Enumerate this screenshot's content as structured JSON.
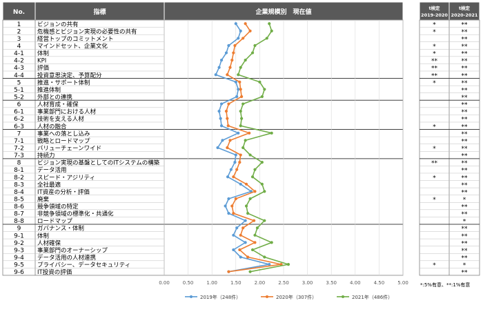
{
  "header": {
    "no": "No.",
    "indicator": "指標",
    "chart_title": "企業規模別　現在値",
    "ttest1": [
      "t検定",
      "2019-2020"
    ],
    "ttest2": [
      "t検定",
      "2020-2021"
    ]
  },
  "rows": [
    {
      "no": "1",
      "label": "ビジョンの共有",
      "t1": "*",
      "t2": "**"
    },
    {
      "no": "2",
      "label": "危機感とビジョン実現の必要性の共有",
      "t1": "*",
      "t2": "**"
    },
    {
      "no": "3",
      "label": "経営トップのコミットメント",
      "t1": "",
      "t2": "**"
    },
    {
      "no": "4",
      "label": "マインドセット、企業文化",
      "t1": "*",
      "t2": "**"
    },
    {
      "no": "4-1",
      "label": "体制",
      "t1": "*",
      "t2": "**"
    },
    {
      "no": "4-2",
      "label": "KPI",
      "t1": "**",
      "t2": "**"
    },
    {
      "no": "4-3",
      "label": "評価",
      "t1": "**",
      "t2": "**"
    },
    {
      "no": "4-4",
      "label": "投資意思決定、予算配分",
      "t1": "**",
      "t2": "**"
    },
    {
      "no": "5",
      "label": "推進・サポート体制",
      "t1": "*",
      "t2": "**"
    },
    {
      "no": "5-1",
      "label": "推進体制",
      "t1": "",
      "t2": "**"
    },
    {
      "no": "5-2",
      "label": "外部との連携",
      "t1": "",
      "t2": "**"
    },
    {
      "no": "6",
      "label": "人材育成・確保",
      "t1": "",
      "t2": "**"
    },
    {
      "no": "6-1",
      "label": "事業部門における人材",
      "t1": "",
      "t2": "**"
    },
    {
      "no": "6-2",
      "label": "技術を支える人材",
      "t1": "",
      "t2": "**"
    },
    {
      "no": "6-3",
      "label": "人材の融合",
      "t1": "*",
      "t2": "**"
    },
    {
      "no": "7",
      "label": "事業への落とし込み",
      "t1": "",
      "t2": "**"
    },
    {
      "no": "7-1",
      "label": "戦略とロードマップ",
      "t1": "",
      "t2": "**"
    },
    {
      "no": "7-2",
      "label": "バリューチェーンワイド",
      "t1": "*",
      "t2": "**"
    },
    {
      "no": "7-3",
      "label": "持続力",
      "t1": "",
      "t2": "**"
    },
    {
      "no": "8",
      "label": "ビジョン実現の基盤としてのITシステムの構築",
      "t1": "**",
      "t2": "**"
    },
    {
      "no": "8-1",
      "label": "データ活用",
      "t1": "",
      "t2": "**"
    },
    {
      "no": "8-2",
      "label": "スピード・アジリティ",
      "t1": "*",
      "t2": "**"
    },
    {
      "no": "8-3",
      "label": "全社最適",
      "t1": "",
      "t2": "**"
    },
    {
      "no": "8-4",
      "label": "IT資産の分析・評価",
      "t1": "",
      "t2": "**"
    },
    {
      "no": "8-5",
      "label": "廃棄",
      "t1": "*",
      "t2": "*"
    },
    {
      "no": "8-6",
      "label": "競争領域の特定",
      "t1": "",
      "t2": "**"
    },
    {
      "no": "8-7",
      "label": "非競争領域の標準化・共通化",
      "t1": "",
      "t2": "**"
    },
    {
      "no": "8-8",
      "label": "ロードマップ",
      "t1": "",
      "t2": "*"
    },
    {
      "no": "9",
      "label": "ガバナンス・体制",
      "t1": "",
      "t2": "**"
    },
    {
      "no": "9-1",
      "label": "体制",
      "t1": "",
      "t2": "**"
    },
    {
      "no": "9-2",
      "label": "人材確保",
      "t1": "",
      "t2": "**"
    },
    {
      "no": "9-3",
      "label": "事業部門のオーナーシップ",
      "t1": "",
      "t2": "**"
    },
    {
      "no": "9-4",
      "label": "データ活用の人材連携",
      "t1": "",
      "t2": "**"
    },
    {
      "no": "9-5",
      "label": "プライバシー、データセキュリティ",
      "t1": "*",
      "t2": "*"
    },
    {
      "no": "9-6",
      "label": "IT投資の評価",
      "t1": "",
      "t2": "**"
    }
  ],
  "footnote": "*:5%有意、**:1%有意",
  "chart_data": {
    "type": "line",
    "orientation": "horizontal",
    "title": "企業規模別　現在値",
    "xlim": [
      0,
      5
    ],
    "xticks": [
      "0.00",
      "0.50",
      "1.00",
      "1.50",
      "2.00",
      "2.50",
      "3.00",
      "3.50",
      "4.00",
      "4.50",
      "5.00"
    ],
    "categories": [
      "1",
      "2",
      "3",
      "4",
      "4-1",
      "4-2",
      "4-3",
      "4-4",
      "5",
      "5-1",
      "5-2",
      "6",
      "6-1",
      "6-2",
      "6-3",
      "7",
      "7-1",
      "7-2",
      "7-3",
      "8",
      "8-1",
      "8-2",
      "8-3",
      "8-4",
      "8-5",
      "8-6",
      "8-7",
      "8-8",
      "9",
      "9-1",
      "9-2",
      "9-3",
      "9-4",
      "9-5",
      "9-6"
    ],
    "legend_position": "bottom",
    "series": [
      {
        "name": "2019年（248件）",
        "color": "#5b9bd5",
        "values": [
          1.5,
          1.6,
          1.55,
          1.35,
          1.3,
          1.2,
          1.15,
          1.08,
          1.5,
          1.55,
          1.52,
          1.2,
          1.15,
          1.18,
          1.2,
          1.55,
          1.22,
          1.12,
          1.5,
          1.48,
          1.4,
          1.33,
          1.6,
          1.82,
          1.35,
          1.28,
          1.35,
          1.7,
          1.52,
          1.45,
          1.7,
          1.45,
          1.6,
          2.2,
          1.35
        ]
      },
      {
        "name": "2020年（307件）",
        "color": "#ed7d31",
        "values": [
          1.7,
          1.8,
          1.65,
          1.48,
          1.45,
          1.42,
          1.38,
          1.32,
          1.58,
          1.6,
          1.62,
          1.35,
          1.3,
          1.32,
          1.34,
          1.78,
          1.38,
          1.32,
          1.6,
          1.58,
          1.52,
          1.45,
          1.72,
          1.9,
          1.5,
          1.42,
          1.45,
          1.88,
          1.65,
          1.6,
          1.9,
          1.58,
          1.75,
          2.45,
          1.35
        ]
      },
      {
        "name": "2021年（486件）",
        "color": "#70ad47",
        "values": [
          2.2,
          2.25,
          2.15,
          1.9,
          1.85,
          1.7,
          1.6,
          1.55,
          2.0,
          2.1,
          2.05,
          1.65,
          1.6,
          1.62,
          1.6,
          2.25,
          1.7,
          1.65,
          1.8,
          2.05,
          1.9,
          1.85,
          2.05,
          2.1,
          1.8,
          1.72,
          1.75,
          2.1,
          1.95,
          1.9,
          2.25,
          1.85,
          2.1,
          2.6,
          1.8
        ]
      }
    ]
  }
}
